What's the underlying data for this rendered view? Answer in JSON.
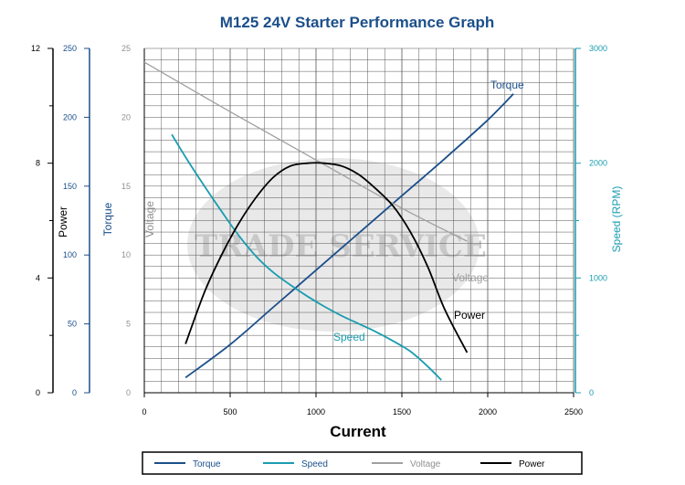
{
  "chart_data": {
    "type": "line",
    "title": "M125 24V Starter Performance Graph",
    "xlabel": "Current",
    "xlim": [
      0,
      2500
    ],
    "xticks": [
      0,
      500,
      1000,
      1500,
      2000,
      2500
    ],
    "grid": true,
    "watermark": "TRADE SERVICE",
    "axes": {
      "power": {
        "label": "Power",
        "lim": [
          0,
          12
        ],
        "ticks": [
          0,
          4,
          8,
          12
        ],
        "color": "#000000"
      },
      "torque": {
        "label": "Torque",
        "lim": [
          0,
          250
        ],
        "ticks": [
          0,
          50,
          100,
          150,
          200,
          250
        ],
        "color": "#1b4f8a"
      },
      "voltage": {
        "label": "Voltage",
        "lim": [
          0,
          25
        ],
        "ticks": [
          0,
          5,
          10,
          15,
          20,
          25
        ],
        "color": "#909090"
      },
      "speed": {
        "label": "Speed (RPM)",
        "lim": [
          0,
          3000
        ],
        "ticks": [
          0,
          1000,
          2000,
          3000
        ],
        "color": "#1a9cb0"
      }
    },
    "series": [
      {
        "name": "Torque",
        "axis": "torque",
        "color": "#1b4f8a",
        "x": [
          240,
          500,
          750,
          1000,
          1250,
          1500,
          1750,
          2000,
          2150
        ],
        "y": [
          11,
          35,
          62,
          89,
          116,
          143,
          170,
          198,
          217
        ]
      },
      {
        "name": "Speed",
        "axis": "speed",
        "color": "#1a9cb0",
        "x": [
          160,
          250,
          350,
          450,
          550,
          650,
          750,
          850,
          950,
          1050,
          1150,
          1250,
          1350,
          1450,
          1550,
          1650,
          1730
        ],
        "y": [
          2250,
          2030,
          1800,
          1580,
          1370,
          1190,
          1050,
          940,
          840,
          750,
          670,
          600,
          530,
          450,
          360,
          230,
          110
        ]
      },
      {
        "name": "Voltage",
        "axis": "voltage",
        "color": "#a0a0a0",
        "x": [
          0,
          500,
          1000,
          1500,
          1880
        ],
        "y": [
          24,
          20.4,
          16.9,
          13.4,
          11
        ]
      },
      {
        "name": "Power",
        "axis": "power",
        "color": "#000000",
        "x": [
          240,
          350,
          450,
          550,
          650,
          750,
          850,
          950,
          1050,
          1150,
          1250,
          1350,
          1450,
          1550,
          1650,
          1750,
          1880
        ],
        "y": [
          1.7,
          3.5,
          4.8,
          5.9,
          6.8,
          7.5,
          7.9,
          8.0,
          8.0,
          7.9,
          7.6,
          7.1,
          6.5,
          5.6,
          4.4,
          2.9,
          1.4
        ]
      }
    ],
    "legend": {
      "position": "bottom",
      "items": [
        {
          "label": "Torque",
          "color": "#1b4f8a"
        },
        {
          "label": "Speed",
          "color": "#1a9cb0"
        },
        {
          "label": "Voltage",
          "color": "#a0a0a0"
        },
        {
          "label": "Power",
          "color": "#000000"
        }
      ]
    }
  }
}
